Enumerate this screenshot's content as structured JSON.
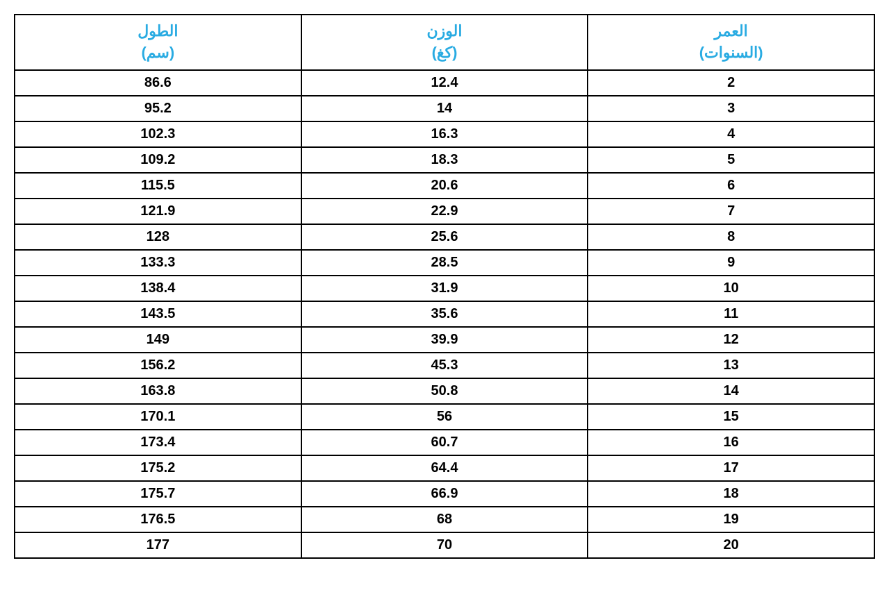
{
  "table": {
    "type": "table",
    "header_color": "#29abe2",
    "body_text_color": "#000000",
    "border_color": "#000000",
    "background_color": "#ffffff",
    "header_fontsize": 22,
    "body_fontsize": 20,
    "columns": [
      {
        "line1": "الطول",
        "line2": "(سم)"
      },
      {
        "line1": "الوزن",
        "line2": "(كغ)"
      },
      {
        "line1": "العمر",
        "line2": "(السنوات)"
      }
    ],
    "rows": [
      [
        "86.6",
        "12.4",
        "2"
      ],
      [
        "95.2",
        "14",
        "3"
      ],
      [
        "102.3",
        "16.3",
        "4"
      ],
      [
        "109.2",
        "18.3",
        "5"
      ],
      [
        "115.5",
        "20.6",
        "6"
      ],
      [
        "121.9",
        "22.9",
        "7"
      ],
      [
        "128",
        "25.6",
        "8"
      ],
      [
        "133.3",
        "28.5",
        "9"
      ],
      [
        "138.4",
        "31.9",
        "10"
      ],
      [
        "143.5",
        "35.6",
        "11"
      ],
      [
        "149",
        "39.9",
        "12"
      ],
      [
        "156.2",
        "45.3",
        "13"
      ],
      [
        "163.8",
        "50.8",
        "14"
      ],
      [
        "170.1",
        "56",
        "15"
      ],
      [
        "173.4",
        "60.7",
        "16"
      ],
      [
        "175.2",
        "64.4",
        "17"
      ],
      [
        "175.7",
        "66.9",
        "18"
      ],
      [
        "176.5",
        "68",
        "19"
      ],
      [
        "177",
        "70",
        "20"
      ]
    ]
  }
}
